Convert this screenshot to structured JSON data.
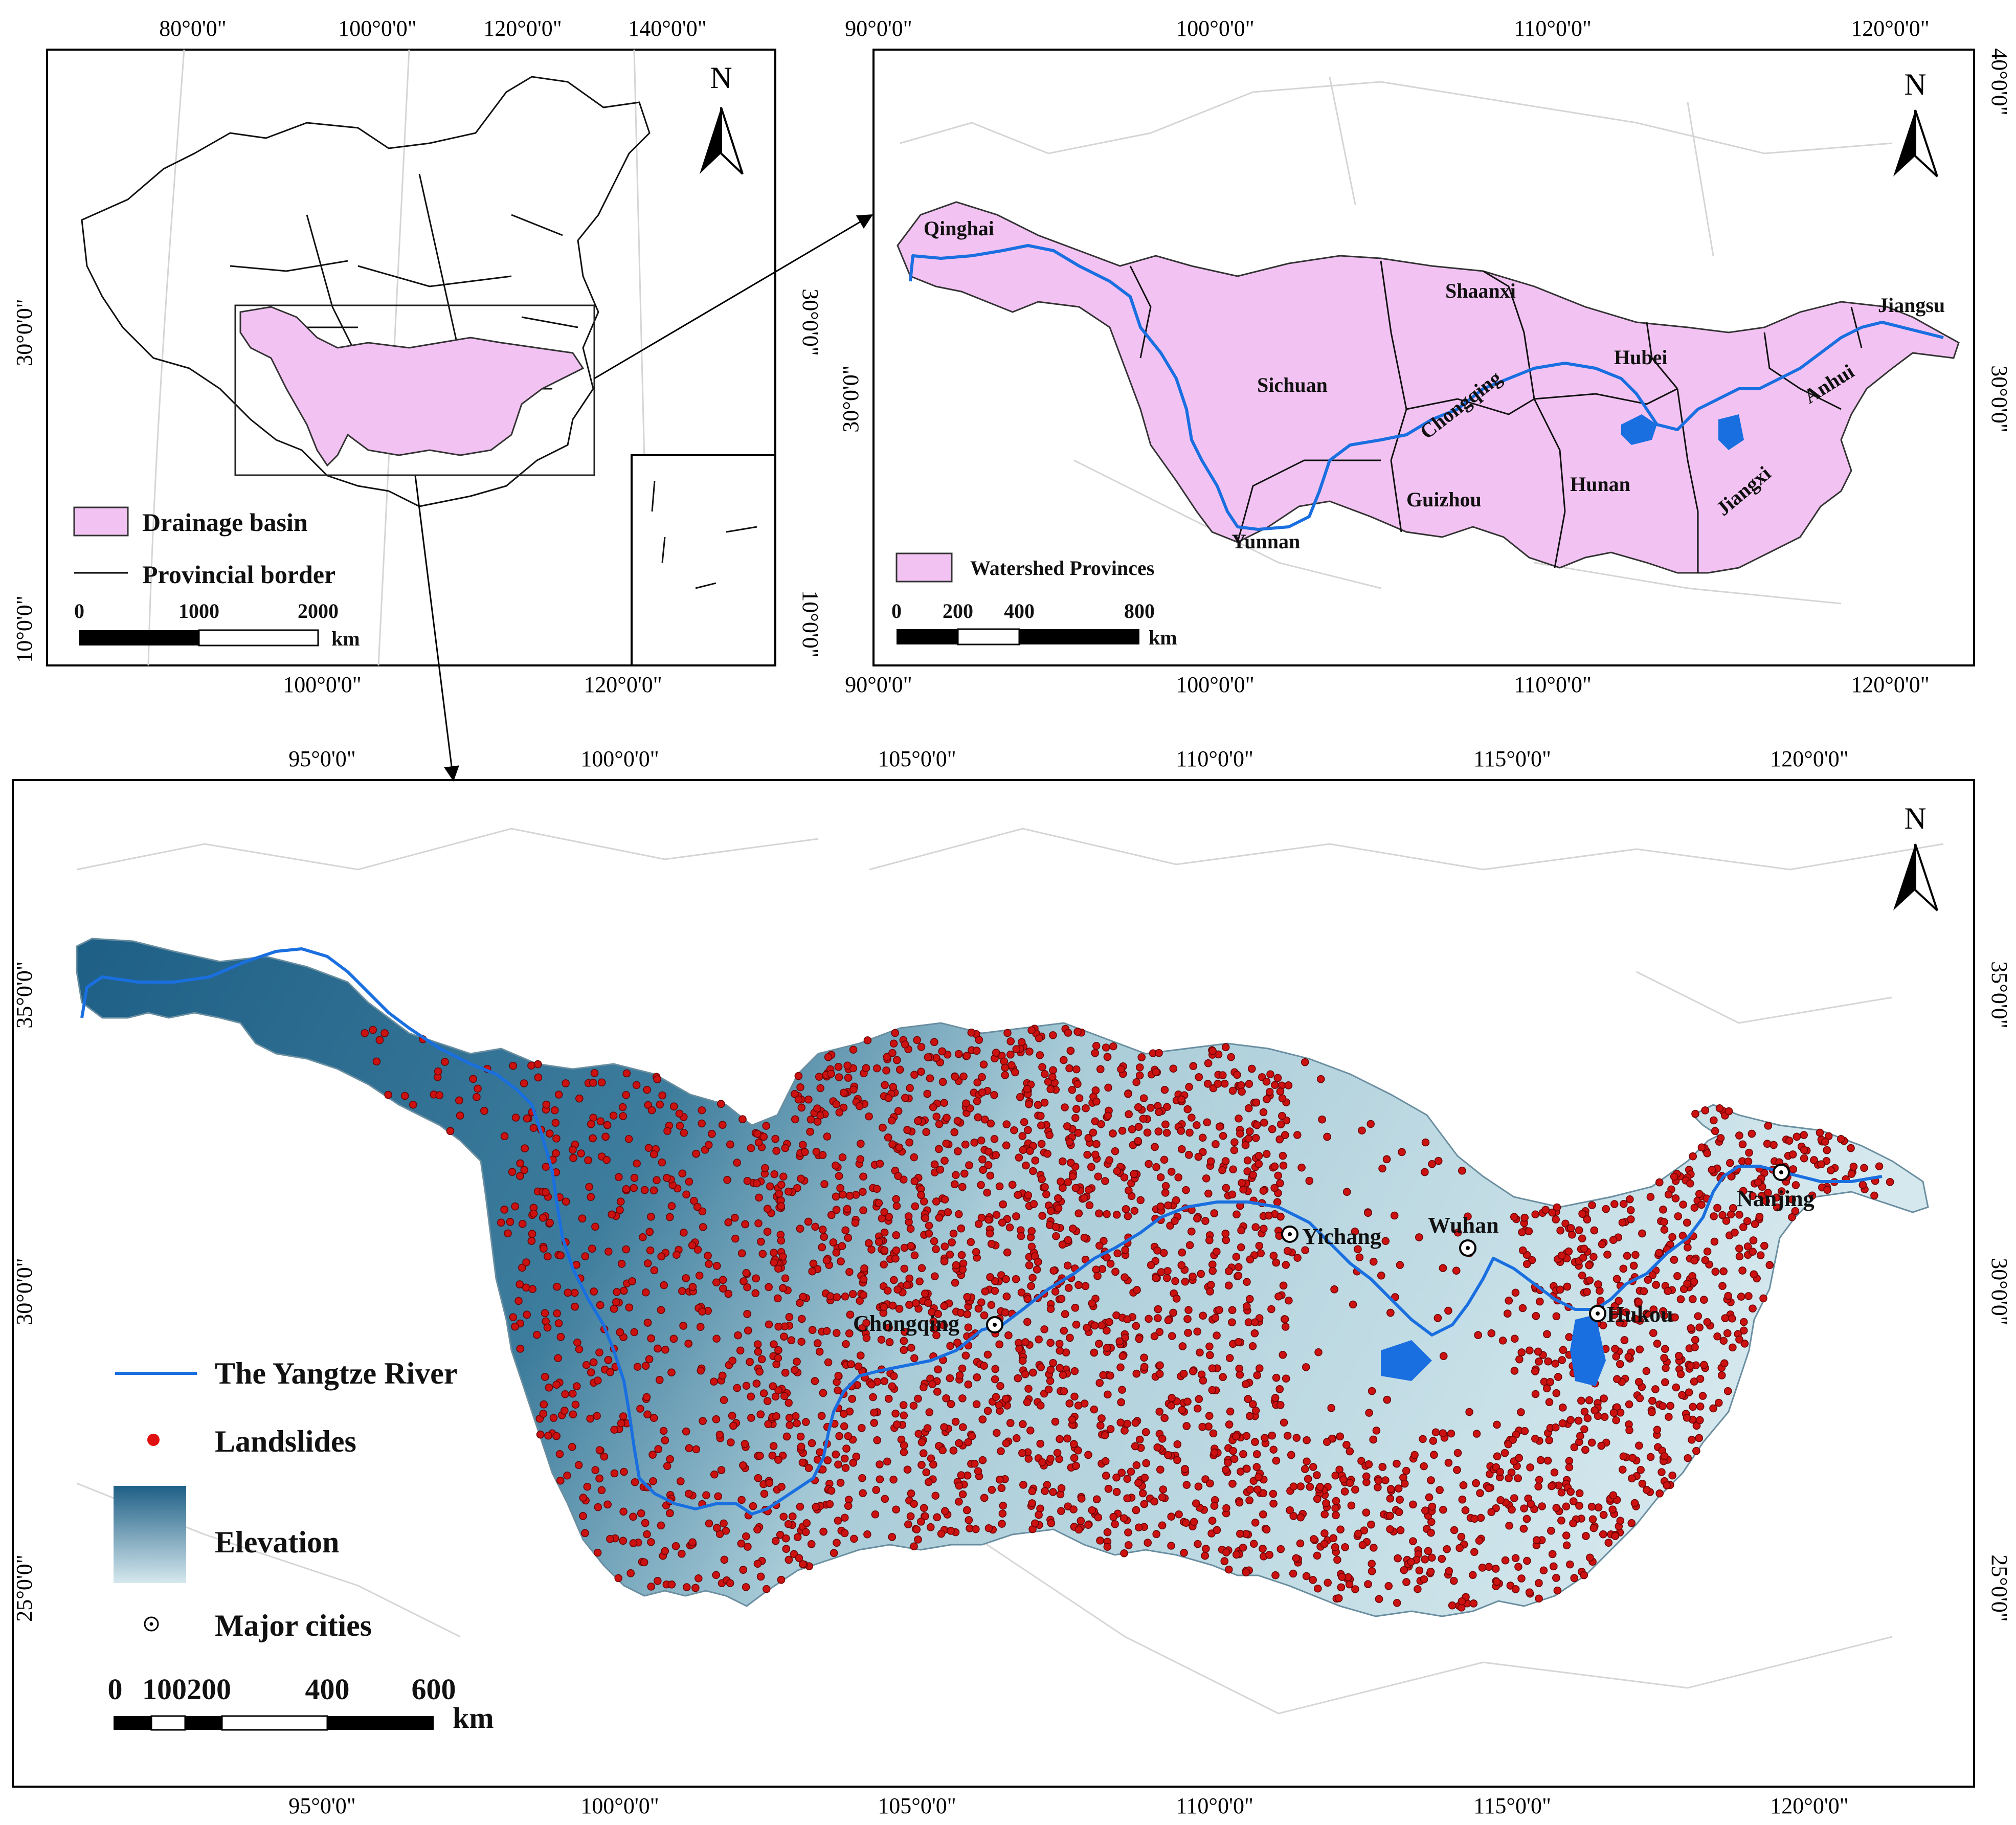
{
  "panel_a": {
    "lon_ticks_top": [
      "80°0'0\"",
      "100°0'0\"",
      "120°0'0\"",
      "140°0'0\""
    ],
    "lon_ticks_bottom": [
      "100°0'0\"",
      "120°0'0\""
    ],
    "lat_ticks_left": [
      "30°0'0\"",
      "10°0'0\""
    ],
    "lat_ticks_right": [
      "30°0'0\"",
      "10°0'0\""
    ],
    "north": "N",
    "legend": {
      "basin": "Drainage basin",
      "border": "Provincial border"
    },
    "scalebar": {
      "ticks": [
        "0",
        "1000",
        "2000"
      ],
      "unit": "km"
    }
  },
  "panel_b": {
    "lon_ticks": [
      "90°0'0\"",
      "100°0'0\"",
      "110°0'0\"",
      "120°0'0\""
    ],
    "lat_ticks_left": [
      "30°0'0\""
    ],
    "lat_ticks_right": [
      "40°0'0\"",
      "30°0'0\""
    ],
    "north": "N",
    "provinces": [
      "Qinghai",
      "Sichuan",
      "Shaanxi",
      "Hubei",
      "Jiangsu",
      "Anhui",
      "Chongqing",
      "Guizhou",
      "Hunan",
      "Jiangxi",
      "Yunnan"
    ],
    "legend": {
      "watershed": "Watershed Provinces"
    },
    "scalebar": {
      "ticks": [
        "0",
        "200",
        "400",
        "800"
      ],
      "unit": "km"
    }
  },
  "panel_c": {
    "lon_ticks": [
      "95°0'0\"",
      "100°0'0\"",
      "105°0'0\"",
      "110°0'0\"",
      "115°0'0\"",
      "120°0'0\""
    ],
    "lat_ticks": [
      "35°0'0\"",
      "30°0'0\"",
      "25°0'0\""
    ],
    "north": "N",
    "cities": [
      "Yichang",
      "Wuhan",
      "Nanjing",
      "Chongqing",
      "Hukou"
    ],
    "legend": {
      "river": "The Yangtze River",
      "landslides": "Landslides",
      "elevation": "Elevation",
      "cities": "Major cities"
    },
    "scalebar": {
      "ticks": [
        "0",
        "100200",
        "400",
        "600"
      ],
      "unit": "km"
    }
  },
  "colors": {
    "basin_fill": "#f2c3f2",
    "river": "#1a6fe0",
    "landslide": "#cc1111",
    "elev_high": "#1e5f86",
    "elev_low": "#d5e8ee"
  }
}
